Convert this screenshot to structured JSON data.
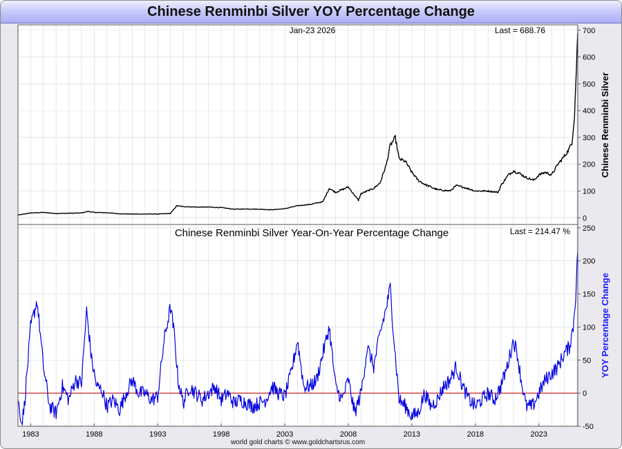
{
  "title": "Chinese Renminbi Silver YOY Percentage Change",
  "footer": "world gold charts © www.goldchartsrus.com",
  "colors": {
    "price_line": "#000000",
    "yoy_line": "#0000e0",
    "zero_line": "#cc2222",
    "yoy_label": "#1a1aff",
    "grid": "#d4d8e4"
  },
  "chart_data": [
    {
      "type": "line",
      "date_label": "Jan-23  2026",
      "last_label": "Last = 688.76",
      "ylabel": "Chinese Renminbi Silver",
      "ylim": [
        -25,
        720
      ],
      "yticks": [
        0,
        100,
        200,
        300,
        400,
        500,
        600,
        700
      ],
      "series": [
        {
          "x": [
            1982,
            1983,
            1984,
            1985,
            1986,
            1987,
            1987.5,
            1988,
            1989,
            1990,
            1991,
            1992,
            1993,
            1994,
            1994.5,
            1995,
            1996,
            1997,
            1998,
            1999,
            2000,
            2001,
            2002,
            2003,
            2004,
            2005,
            2006,
            2006.5,
            2007,
            2008,
            2008.8,
            2009,
            2010,
            2010.5,
            2011,
            2011.3,
            2011.7,
            2012,
            2012.5,
            2013,
            2013.5,
            2014,
            2015,
            2016,
            2016.5,
            2017,
            2018,
            2019,
            2019.8,
            2020,
            2020.6,
            2021,
            2021.5,
            2022,
            2022.6,
            2023,
            2023.5,
            2024,
            2024.5,
            2025,
            2025.3,
            2025.6,
            2025.8,
            2026.06
          ],
          "y": [
            10,
            18,
            20,
            16,
            17,
            18,
            24,
            20,
            19,
            15,
            14,
            14,
            14,
            16,
            45,
            42,
            40,
            40,
            38,
            32,
            33,
            32,
            30,
            34,
            45,
            50,
            60,
            110,
            95,
            115,
            65,
            90,
            110,
            130,
            200,
            270,
            300,
            220,
            210,
            170,
            140,
            125,
            105,
            100,
            120,
            115,
            100,
            100,
            95,
            120,
            160,
            175,
            165,
            150,
            140,
            160,
            170,
            160,
            200,
            230,
            250,
            280,
            380,
            689
          ]
        }
      ]
    },
    {
      "type": "line",
      "title": "Chinese Renminbi Silver Year-On-Year Percentage Change",
      "last_label": "Last = 214.47 %",
      "ylabel": "YOY Percentage Change",
      "ylim": [
        -50,
        255
      ],
      "yticks": [
        -50,
        0,
        50,
        100,
        150,
        200,
        250
      ],
      "xlim": [
        1982,
        2026.06
      ],
      "xticks": [
        "1983",
        "1988",
        "1993",
        "1998",
        "2003",
        "2008",
        "2013",
        "2018",
        "2023"
      ],
      "reference_line": 0,
      "series": [
        {
          "x": [
            1982,
            1982.3,
            1982.5,
            1983,
            1983.5,
            1984,
            1984.5,
            1985,
            1985.5,
            1986,
            1986.5,
            1987,
            1987.4,
            1987.8,
            1988.2,
            1988.6,
            1989,
            1989.5,
            1990,
            1990.5,
            1991,
            1991.5,
            1992,
            1992.5,
            1993,
            1993.5,
            1994,
            1994.3,
            1994.6,
            1995,
            1995.5,
            1996,
            1996.5,
            1997,
            1997.5,
            1998,
            1998.5,
            1999,
            1999.5,
            2000,
            2000.5,
            2001,
            2001.5,
            2002,
            2002.5,
            2003,
            2003.5,
            2004,
            2004.5,
            2005,
            2005.5,
            2006,
            2006.5,
            2007,
            2007.5,
            2008,
            2008.5,
            2009,
            2009.5,
            2010,
            2010.5,
            2011,
            2011.3,
            2011.6,
            2012,
            2012.5,
            2013,
            2013.5,
            2014,
            2014.5,
            2015,
            2015.5,
            2016,
            2016.5,
            2017,
            2017.5,
            2018,
            2018.5,
            2019,
            2019.5,
            2020,
            2020.5,
            2021,
            2021.3,
            2021.6,
            2022,
            2022.5,
            2023,
            2023.5,
            2024,
            2024.5,
            2025,
            2025.4,
            2025.7,
            2025.9,
            2026.06
          ],
          "y": [
            -10,
            -45,
            -20,
            100,
            140,
            40,
            -20,
            -30,
            10,
            -10,
            20,
            15,
            125,
            50,
            10,
            5,
            -20,
            -10,
            -25,
            0,
            20,
            0,
            0,
            -10,
            -5,
            80,
            130,
            90,
            20,
            -15,
            10,
            0,
            -10,
            0,
            10,
            -10,
            0,
            -15,
            -10,
            -15,
            -20,
            -15,
            -10,
            10,
            0,
            -5,
            30,
            80,
            10,
            10,
            20,
            60,
            100,
            10,
            -10,
            20,
            -30,
            0,
            70,
            40,
            90,
            130,
            160,
            80,
            -10,
            -20,
            -35,
            -30,
            0,
            -20,
            -10,
            10,
            20,
            40,
            10,
            -10,
            -20,
            -10,
            0,
            -10,
            10,
            40,
            80,
            60,
            20,
            -20,
            -20,
            0,
            20,
            30,
            40,
            60,
            70,
            100,
            150,
            214
          ]
        }
      ]
    }
  ]
}
